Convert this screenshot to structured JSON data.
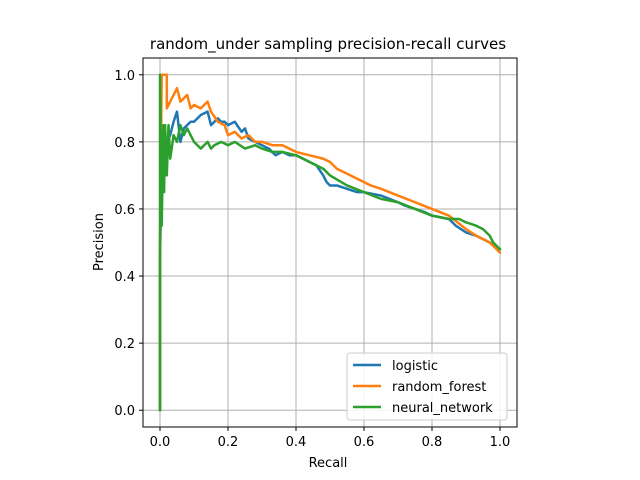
{
  "chart_data": {
    "type": "line",
    "title": "random_under sampling precision-recall curves",
    "xlabel": "Recall",
    "ylabel": "Precision",
    "xlim": [
      -0.05,
      1.05
    ],
    "ylim": [
      -0.05,
      1.05
    ],
    "xticks": [
      0.0,
      0.2,
      0.4,
      0.6,
      0.8,
      1.0
    ],
    "yticks": [
      0.0,
      0.2,
      0.4,
      0.6,
      0.8,
      1.0
    ],
    "xtick_labels": [
      "0.0",
      "0.2",
      "0.4",
      "0.6",
      "0.8",
      "1.0"
    ],
    "ytick_labels": [
      "0.0",
      "0.2",
      "0.4",
      "0.6",
      "0.8",
      "1.0"
    ],
    "grid": true,
    "legend_position": "lower-right",
    "series": [
      {
        "name": "logistic",
        "color": "#1f77b4",
        "x": [
          0.0,
          0.0,
          0.005,
          0.01,
          0.015,
          0.02,
          0.03,
          0.04,
          0.05,
          0.06,
          0.07,
          0.09,
          0.1,
          0.12,
          0.14,
          0.15,
          0.17,
          0.18,
          0.19,
          0.2,
          0.22,
          0.24,
          0.25,
          0.26,
          0.28,
          0.3,
          0.32,
          0.34,
          0.36,
          0.38,
          0.4,
          0.42,
          0.44,
          0.46,
          0.48,
          0.49,
          0.5,
          0.52,
          0.55,
          0.58,
          0.6,
          0.65,
          0.7,
          0.72,
          0.75,
          0.78,
          0.8,
          0.85,
          0.87,
          0.9,
          0.93,
          0.95,
          0.97,
          1.0
        ],
        "y": [
          0.0,
          0.45,
          0.72,
          0.78,
          0.76,
          0.8,
          0.82,
          0.86,
          0.89,
          0.8,
          0.84,
          0.86,
          0.86,
          0.88,
          0.89,
          0.85,
          0.87,
          0.86,
          0.86,
          0.85,
          0.86,
          0.83,
          0.84,
          0.81,
          0.8,
          0.79,
          0.78,
          0.76,
          0.77,
          0.76,
          0.76,
          0.75,
          0.74,
          0.73,
          0.7,
          0.68,
          0.67,
          0.67,
          0.66,
          0.65,
          0.65,
          0.64,
          0.62,
          0.61,
          0.6,
          0.59,
          0.58,
          0.57,
          0.55,
          0.53,
          0.52,
          0.51,
          0.5,
          0.48
        ]
      },
      {
        "name": "random_forest",
        "color": "#ff7f0e",
        "x": [
          0.0,
          0.0,
          0.005,
          0.01,
          0.015,
          0.02,
          0.02,
          0.03,
          0.04,
          0.05,
          0.06,
          0.08,
          0.09,
          0.1,
          0.12,
          0.14,
          0.15,
          0.17,
          0.19,
          0.2,
          0.22,
          0.24,
          0.26,
          0.28,
          0.3,
          0.33,
          0.36,
          0.4,
          0.44,
          0.48,
          0.5,
          0.52,
          0.54,
          0.56,
          0.58,
          0.6,
          0.62,
          0.65,
          0.7,
          0.75,
          0.8,
          0.85,
          0.9,
          0.93,
          0.95,
          0.97,
          1.0
        ],
        "y": [
          0.0,
          0.5,
          1.0,
          1.0,
          1.0,
          1.0,
          0.9,
          0.92,
          0.94,
          0.96,
          0.92,
          0.94,
          0.9,
          0.91,
          0.9,
          0.92,
          0.89,
          0.86,
          0.85,
          0.82,
          0.83,
          0.81,
          0.82,
          0.8,
          0.8,
          0.79,
          0.79,
          0.77,
          0.76,
          0.75,
          0.74,
          0.72,
          0.71,
          0.7,
          0.69,
          0.68,
          0.67,
          0.66,
          0.64,
          0.62,
          0.6,
          0.58,
          0.54,
          0.52,
          0.51,
          0.5,
          0.47
        ]
      },
      {
        "name": "neural_network",
        "color": "#2ca02c",
        "x": [
          0.0,
          0.0,
          0.005,
          0.01,
          0.012,
          0.015,
          0.02,
          0.025,
          0.03,
          0.04,
          0.05,
          0.06,
          0.07,
          0.08,
          0.1,
          0.12,
          0.14,
          0.15,
          0.16,
          0.18,
          0.2,
          0.22,
          0.25,
          0.28,
          0.3,
          0.33,
          0.36,
          0.4,
          0.44,
          0.48,
          0.5,
          0.55,
          0.6,
          0.65,
          0.7,
          0.75,
          0.8,
          0.85,
          0.88,
          0.9,
          0.93,
          0.95,
          0.97,
          0.98,
          1.0
        ],
        "y": [
          0.0,
          1.0,
          0.55,
          0.85,
          0.65,
          0.85,
          0.7,
          0.85,
          0.75,
          0.82,
          0.8,
          0.85,
          0.82,
          0.84,
          0.8,
          0.78,
          0.8,
          0.78,
          0.79,
          0.8,
          0.79,
          0.8,
          0.78,
          0.79,
          0.78,
          0.77,
          0.77,
          0.76,
          0.74,
          0.72,
          0.7,
          0.67,
          0.65,
          0.63,
          0.62,
          0.6,
          0.58,
          0.57,
          0.57,
          0.56,
          0.55,
          0.54,
          0.52,
          0.5,
          0.48
        ]
      }
    ]
  }
}
